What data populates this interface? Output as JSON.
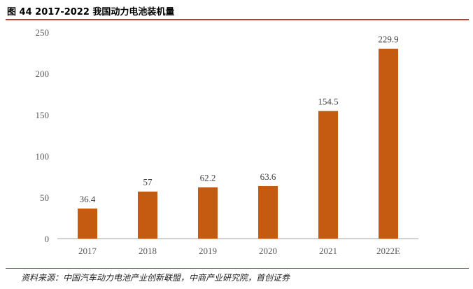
{
  "figure": {
    "title": "图 44 2017-2022 我国动力电池装机量",
    "source": "资料来源：中国汽车动力电池产业创新联盟，中商产业研究院，首创证券"
  },
  "chart_data": {
    "type": "bar",
    "title": "",
    "xlabel": "",
    "ylabel": "",
    "categories": [
      "2017",
      "2018",
      "2019",
      "2020",
      "2021",
      "2022E"
    ],
    "values": [
      36.4,
      57,
      62.2,
      63.6,
      154.5,
      229.9
    ],
    "value_labels": [
      "36.4",
      "57",
      "62.2",
      "63.6",
      "154.5",
      "229.9"
    ],
    "ylim": [
      0,
      250
    ],
    "yticks": [
      0,
      50,
      100,
      150,
      200,
      250
    ],
    "grid": false,
    "legend": "none",
    "bar_color": "#c55a11"
  }
}
